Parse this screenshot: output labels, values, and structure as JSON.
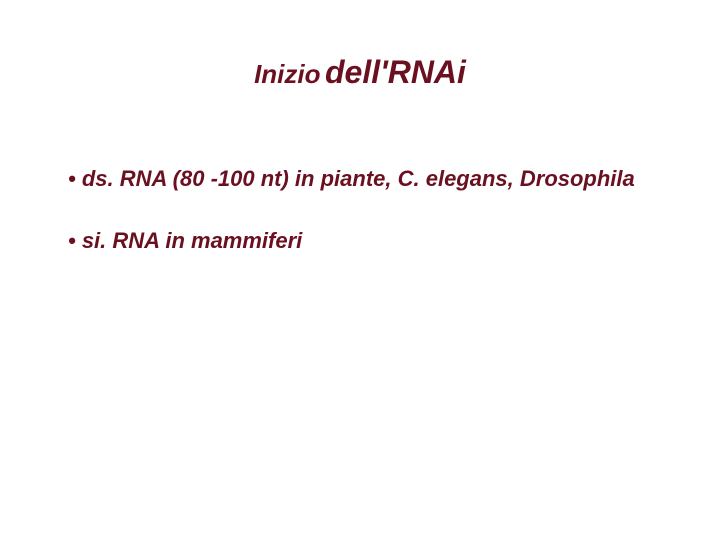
{
  "colors": {
    "text": "#6b1020",
    "background": "#ffffff"
  },
  "title": {
    "part1": "Inizio",
    "part2": "dell'RNAi",
    "fontsize_part1": 26,
    "fontsize_part2": 32,
    "font_style": "italic",
    "font_weight": "bold"
  },
  "bullets": [
    {
      "text": "• ds. RNA (80 -100 nt) in piante, C. elegans, Drosophila"
    },
    {
      "text": "• si. RNA in mammiferi"
    }
  ],
  "bullet_style": {
    "fontsize": 22,
    "font_style": "italic",
    "font_weight": "bold",
    "line_spacing": 36
  }
}
